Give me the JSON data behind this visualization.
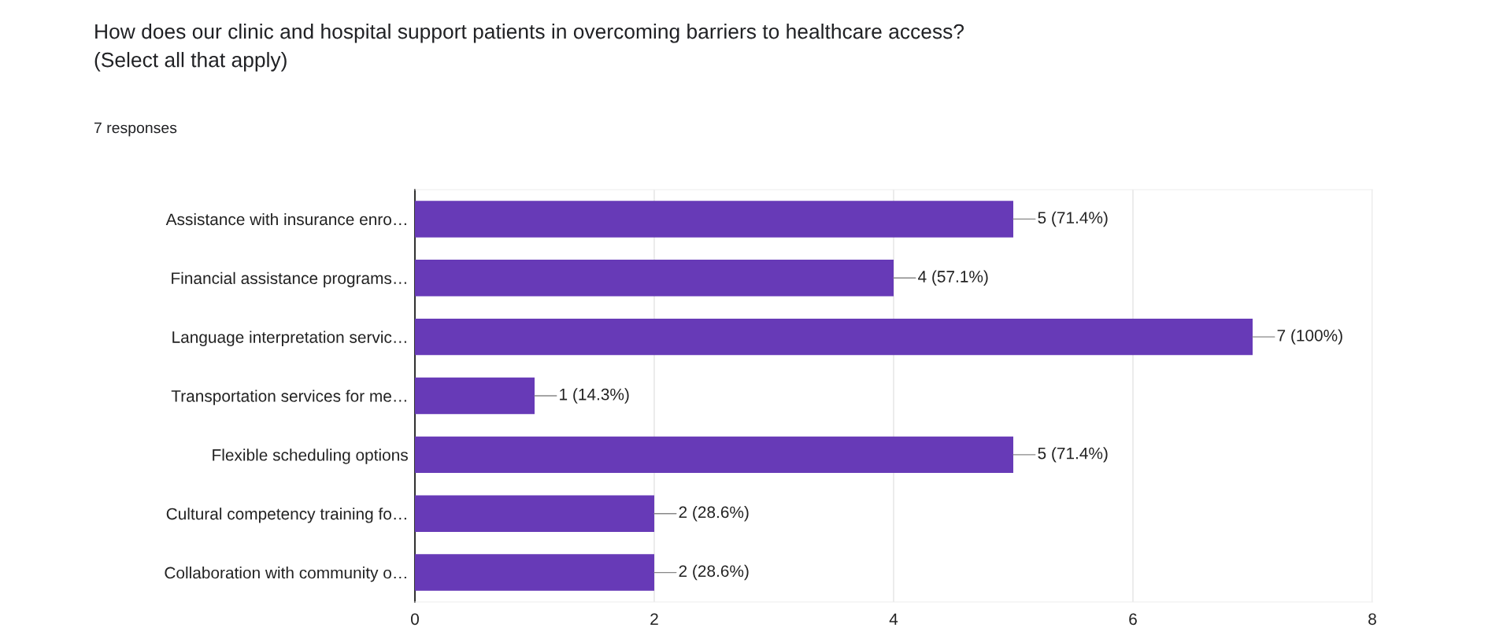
{
  "chart_data": {
    "type": "bar",
    "orientation": "horizontal",
    "title": "How does our clinic and hospital support patients in overcoming barriers to healthcare access?\n(Select all that apply)",
    "subtitle": "7 responses",
    "categories": [
      "Assistance with insurance enro…",
      "Financial assistance programs…",
      "Language interpretation servic…",
      "Transportation services for me…",
      "Flexible scheduling options",
      "Cultural competency training fo…",
      "Collaboration with community o…"
    ],
    "values": [
      5,
      4,
      7,
      1,
      5,
      2,
      2
    ],
    "value_labels": [
      "5 (71.4%)",
      "4 (57.1%)",
      "7 (100%)",
      "1 (14.3%)",
      "5 (71.4%)",
      "2 (28.6%)",
      "2 (28.6%)"
    ],
    "color": "#673ab7",
    "xlim": [
      0,
      8
    ],
    "xticks": [
      0,
      2,
      4,
      6,
      8
    ],
    "grid": "x"
  }
}
